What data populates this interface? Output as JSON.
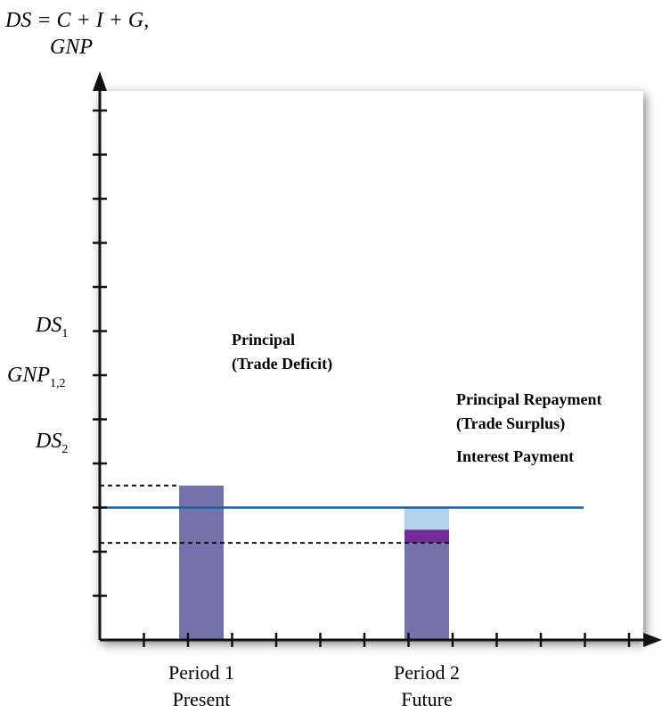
{
  "chart_data": {
    "type": "bar",
    "ylabel_line1": "DS = C + I + G,",
    "ylabel_line2": "GNP",
    "categories": [
      {
        "line1": "Period 1",
        "line2": "Present"
      },
      {
        "line1": "Period 2",
        "line2": "Future"
      }
    ],
    "ylim": [
      0,
      7
    ],
    "levels": {
      "DS1": 3.5,
      "GNP12": 3.0,
      "DS2": 2.2
    },
    "level_labels": {
      "DS1": {
        "main": "DS",
        "sub": "1"
      },
      "GNP12": {
        "main": "GNP",
        "sub": "1,2"
      },
      "DS2": {
        "main": "DS",
        "sub": "2"
      }
    },
    "bars": [
      {
        "category_index": 0,
        "segments": [
          {
            "from": 0,
            "to": 3.5,
            "color": "#7472ab"
          }
        ]
      },
      {
        "category_index": 1,
        "segments": [
          {
            "from": 0,
            "to": 2.2,
            "color": "#7472ab"
          },
          {
            "from": 2.2,
            "to": 2.5,
            "color": "#74299b"
          },
          {
            "from": 2.5,
            "to": 3.0,
            "color": "#b1d3ec"
          }
        ]
      }
    ],
    "annotations": [
      {
        "line1": "Principal",
        "line2": "(Trade Deficit)"
      },
      {
        "line1": "Principal Repayment",
        "line2": "(Trade Surplus)"
      },
      {
        "line1": "Interest Payment",
        "line2": ""
      }
    ],
    "colors": {
      "bar": "#7472ab",
      "interest": "#74299b",
      "repayment": "#b1d3ec",
      "gnp_line": "#1f5e96",
      "axis": "#111111"
    }
  }
}
